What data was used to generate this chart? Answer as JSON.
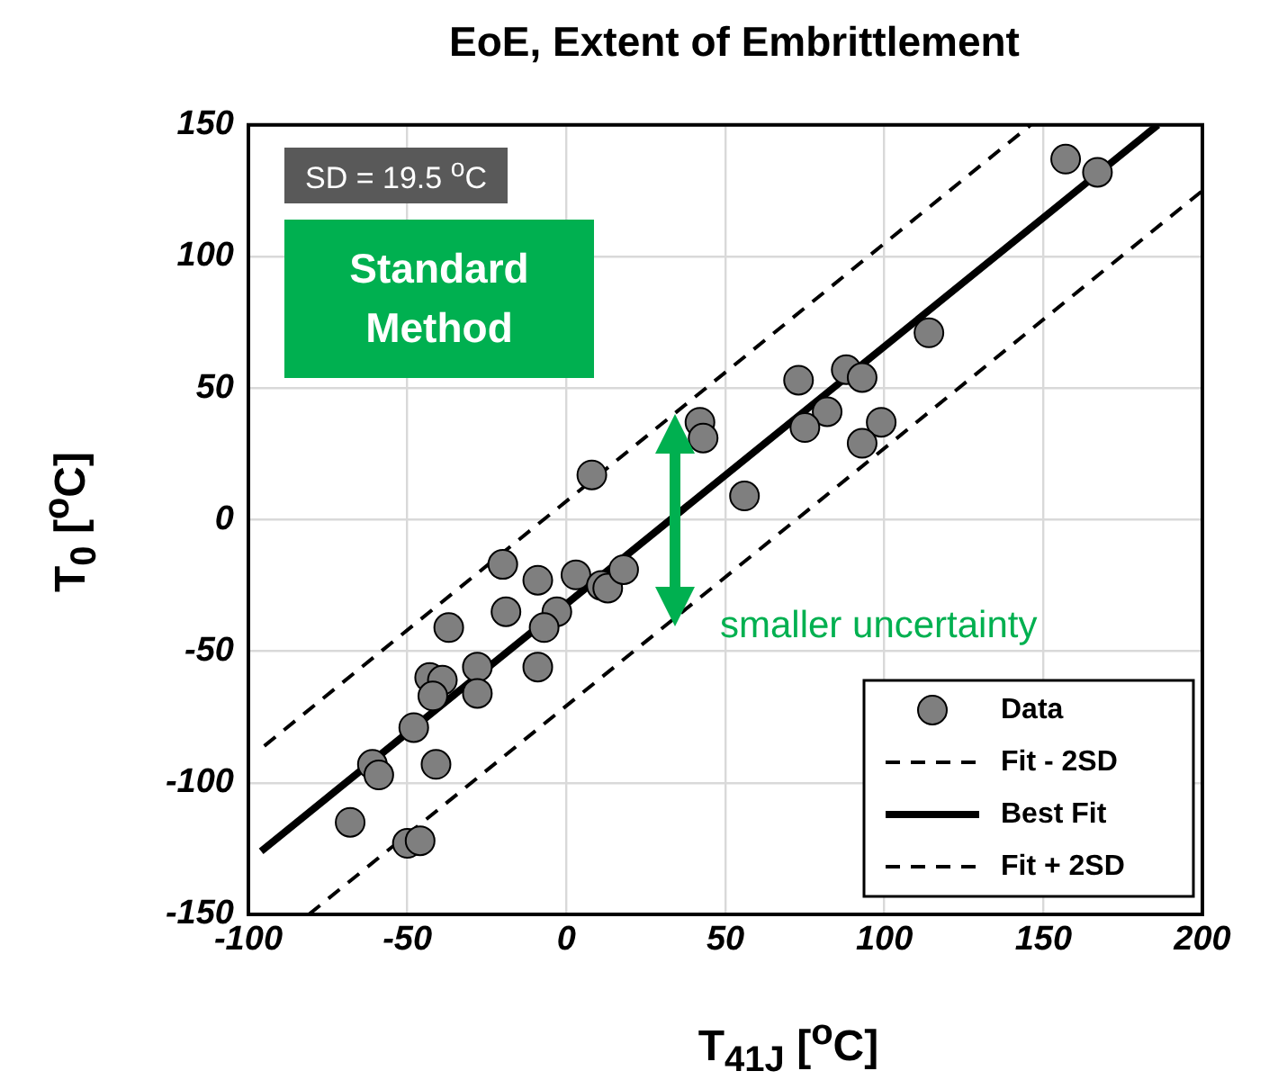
{
  "chart_data": {
    "type": "scatter",
    "title": "EoE, Extent of Embrittlement",
    "xlabel": "T$_{41J}$  [$^{o}$C]",
    "ylabel": "T$_{0}$  [$^{o}$C]",
    "annotations": [
      "SD = 19.5 $^{o}$C",
      "Standard Method",
      "smaller uncertainty"
    ],
    "xlim": [
      -100,
      200
    ],
    "xticks": [
      -100,
      -50,
      0,
      50,
      100,
      150,
      200
    ],
    "ylim": [
      -150,
      150
    ],
    "yticks": [
      -150,
      -100,
      -50,
      0,
      50,
      100,
      150
    ],
    "grid": true,
    "legend": "bottom right",
    "series": [
      {
        "name": "Data",
        "marker": "circle",
        "color": "#7f7f7f",
        "x": [
          157,
          167,
          114,
          73,
          88,
          93,
          82,
          75,
          99,
          93,
          56,
          42,
          43,
          8,
          -20,
          -9,
          3,
          11,
          13,
          18,
          -19,
          -3,
          -7,
          -37,
          -9,
          -28,
          -43,
          -39,
          -42,
          -28,
          -48,
          -61,
          -59,
          -41,
          -68,
          -50,
          -46
        ],
        "values": [
          137,
          132,
          71,
          53,
          57,
          54,
          41,
          35,
          37,
          29,
          9,
          37,
          31,
          17,
          -17,
          -23,
          -21,
          -25,
          -26,
          -19,
          -35,
          -35,
          -41,
          -41,
          -56,
          -56,
          -60,
          -61,
          -67,
          -66,
          -79,
          -93,
          -97,
          -93,
          -115,
          -123,
          -122
        ]
      },
      {
        "name": "Fit - 2SD",
        "type": "line",
        "line_style": "dashed",
        "marker": "none",
        "color": "#000000",
        "x": [
          -81,
          200
        ],
        "values": [
          -150,
          125
        ]
      },
      {
        "name": "Best Fit",
        "type": "line",
        "line_style": "solid",
        "marker": "none",
        "color": "#000000",
        "x": [
          -96,
          186
        ],
        "values": [
          -126,
          150
        ]
      },
      {
        "name": "Fit + 2SD",
        "type": "line",
        "line_style": "dashed",
        "marker": "none",
        "color": "#000000",
        "x": [
          -95,
          146
        ],
        "values": [
          -86,
          150
        ]
      }
    ]
  }
}
